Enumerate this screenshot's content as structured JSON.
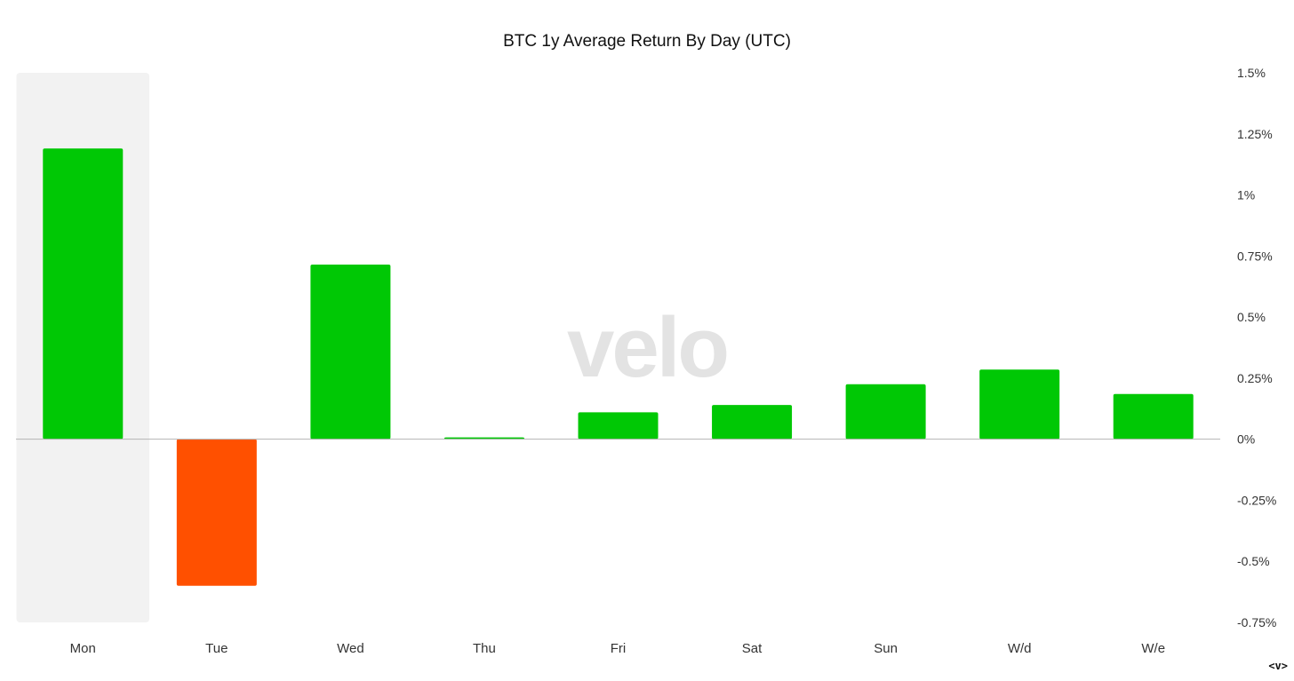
{
  "chart_data": {
    "type": "bar",
    "title": "BTC 1y Average Return By Day (UTC)",
    "xlabel": "",
    "ylabel": "",
    "categories": [
      "Mon",
      "Tue",
      "Wed",
      "Thu",
      "Fri",
      "Sat",
      "Sun",
      "W/d",
      "W/e"
    ],
    "values": [
      1.19,
      -0.6,
      0.715,
      0.005,
      0.11,
      0.14,
      0.225,
      0.285,
      0.185
    ],
    "value_unit": "%",
    "ylim": [
      -0.75,
      1.5
    ],
    "y_ticks": [
      1.5,
      1.25,
      1,
      0.75,
      0.5,
      0.25,
      0,
      -0.25,
      -0.5,
      -0.75
    ],
    "y_tick_labels": [
      "1.5%",
      "1.25%",
      "1%",
      "0.75%",
      "0.5%",
      "0.25%",
      "0%",
      "-0.25%",
      "-0.5%",
      "-0.75%"
    ],
    "y_axis_side": "right",
    "grid": false,
    "legend": "none",
    "highlighted_category": "Mon",
    "colors": {
      "positive": "#00c805",
      "negative": "#ff5000",
      "highlight_band": "#f2f2f2",
      "zero_line": "#b5b5b5",
      "watermark": "#e3e3e3"
    }
  },
  "watermark_text": "velo",
  "corner_label": "<v>"
}
